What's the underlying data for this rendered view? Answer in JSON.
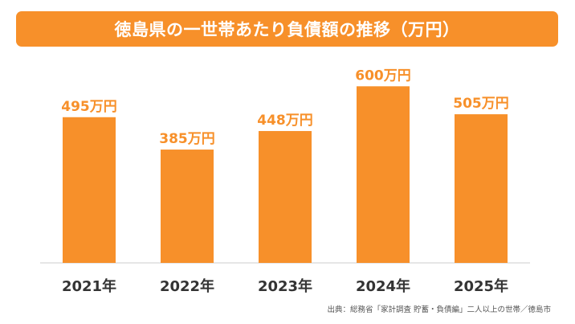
{
  "title": "徳島県の一世帯あたり負債額の推移（万円）",
  "source": "出典：総務省「家計調査 貯蓄・負債編」二人以上の世帯／徳島市",
  "colors": {
    "bar": "#f7902a",
    "banner": "#f7902a",
    "banner_text": "#ffffff",
    "axis": "#cccccc"
  },
  "chart_data": {
    "type": "bar",
    "title": "徳島県の一世帯あたり負債額の推移（万円）",
    "categories": [
      "2021年",
      "2022年",
      "2023年",
      "2024年",
      "2025年"
    ],
    "values": [
      495,
      385,
      448,
      600,
      505
    ],
    "value_labels": [
      "495万円",
      "385万円",
      "448万円",
      "600万円",
      "505万円"
    ],
    "xlabel": "",
    "ylabel": "",
    "ylim": [
      0,
      620
    ],
    "grid": false,
    "legend": "none"
  }
}
